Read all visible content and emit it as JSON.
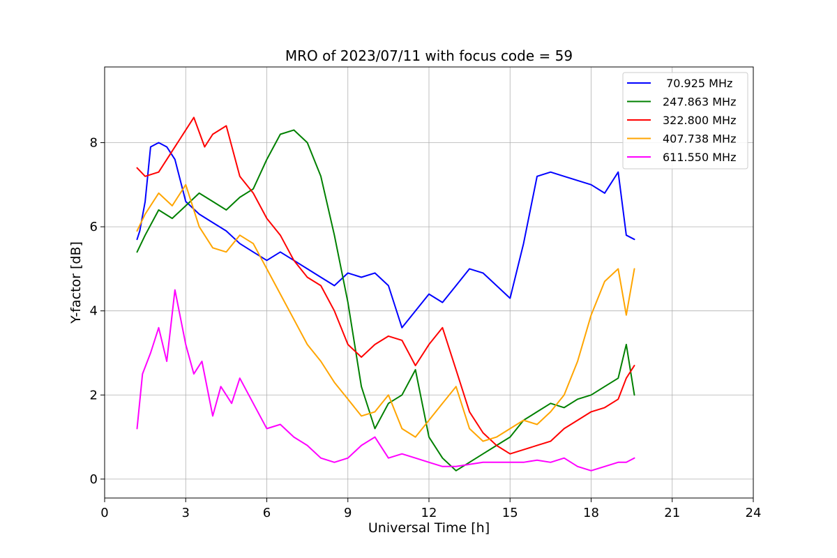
{
  "chart_data": {
    "type": "line",
    "title": "MRO of 2023/07/11 with focus code = 59",
    "xlabel": "Universal Time [h]",
    "ylabel": "Y-factor [dB]",
    "xlim": [
      0,
      24
    ],
    "ylim": [
      -0.45,
      9.8
    ],
    "xticks": [
      0,
      3,
      6,
      9,
      12,
      15,
      18,
      21,
      24
    ],
    "yticks": [
      0,
      2,
      4,
      6,
      8
    ],
    "grid": true,
    "legend_position": "top-right",
    "series": [
      {
        "name": " 70.925 MHz",
        "color": "#0000ff",
        "x": [
          1.2,
          1.3,
          1.5,
          1.7,
          2.0,
          2.3,
          2.6,
          3.0,
          3.5,
          4.0,
          4.5,
          5.0,
          5.5,
          6.0,
          6.5,
          7.0,
          7.5,
          8.0,
          8.5,
          9.0,
          9.5,
          10.0,
          10.5,
          11.0,
          11.5,
          12.0,
          12.5,
          13.0,
          13.5,
          14.0,
          14.5,
          15.0,
          15.5,
          16.0,
          16.5,
          17.0,
          17.5,
          18.0,
          18.5,
          19.0,
          19.3,
          19.6
        ],
        "y": [
          5.7,
          5.9,
          6.6,
          7.9,
          8.0,
          7.9,
          7.6,
          6.6,
          6.3,
          6.1,
          5.9,
          5.6,
          5.4,
          5.2,
          5.4,
          5.2,
          5.0,
          4.8,
          4.6,
          4.9,
          4.8,
          4.9,
          4.6,
          3.6,
          4.0,
          4.4,
          4.2,
          4.6,
          5.0,
          4.9,
          4.6,
          4.3,
          5.6,
          7.2,
          7.3,
          7.2,
          7.1,
          7.0,
          6.8,
          7.3,
          5.8,
          5.7
        ]
      },
      {
        "name": "247.863 MHz",
        "color": "#008000",
        "x": [
          1.2,
          1.5,
          2.0,
          2.5,
          3.0,
          3.5,
          4.0,
          4.5,
          5.0,
          5.5,
          6.0,
          6.5,
          7.0,
          7.5,
          8.0,
          8.5,
          9.0,
          9.5,
          10.0,
          10.5,
          11.0,
          11.5,
          12.0,
          12.5,
          13.0,
          13.5,
          14.0,
          14.5,
          15.0,
          15.5,
          16.0,
          16.5,
          17.0,
          17.5,
          18.0,
          18.5,
          19.0,
          19.3,
          19.6
        ],
        "y": [
          5.4,
          5.8,
          6.4,
          6.2,
          6.5,
          6.8,
          6.6,
          6.4,
          6.7,
          6.9,
          7.6,
          8.2,
          8.3,
          8.0,
          7.2,
          5.8,
          4.2,
          2.2,
          1.2,
          1.8,
          2.0,
          2.6,
          1.0,
          0.5,
          0.2,
          0.4,
          0.6,
          0.8,
          1.0,
          1.4,
          1.6,
          1.8,
          1.7,
          1.9,
          2.0,
          2.2,
          2.4,
          3.2,
          2.0
        ]
      },
      {
        "name": "322.800 MHz",
        "color": "#ff0000",
        "x": [
          1.2,
          1.5,
          2.0,
          2.5,
          3.0,
          3.3,
          3.7,
          4.0,
          4.5,
          5.0,
          5.5,
          6.0,
          6.5,
          7.0,
          7.5,
          8.0,
          8.5,
          9.0,
          9.5,
          10.0,
          10.5,
          11.0,
          11.5,
          12.0,
          12.5,
          13.0,
          13.5,
          14.0,
          14.5,
          15.0,
          15.5,
          16.0,
          16.5,
          17.0,
          17.5,
          18.0,
          18.5,
          19.0,
          19.3,
          19.6
        ],
        "y": [
          7.4,
          7.2,
          7.3,
          7.8,
          8.3,
          8.6,
          7.9,
          8.2,
          8.4,
          7.2,
          6.8,
          6.2,
          5.8,
          5.2,
          4.8,
          4.6,
          4.0,
          3.2,
          2.9,
          3.2,
          3.4,
          3.3,
          2.7,
          3.2,
          3.6,
          2.6,
          1.6,
          1.1,
          0.8,
          0.6,
          0.7,
          0.8,
          0.9,
          1.2,
          1.4,
          1.6,
          1.7,
          1.9,
          2.4,
          2.7
        ]
      },
      {
        "name": "407.738 MHz",
        "color": "#ffa500",
        "x": [
          1.2,
          1.5,
          2.0,
          2.5,
          3.0,
          3.5,
          4.0,
          4.5,
          5.0,
          5.5,
          6.0,
          6.5,
          7.0,
          7.5,
          8.0,
          8.5,
          9.0,
          9.5,
          10.0,
          10.5,
          11.0,
          11.5,
          12.0,
          12.5,
          13.0,
          13.5,
          14.0,
          14.5,
          15.0,
          15.5,
          16.0,
          16.5,
          17.0,
          17.5,
          18.0,
          18.5,
          19.0,
          19.3,
          19.6
        ],
        "y": [
          5.9,
          6.3,
          6.8,
          6.5,
          7.0,
          6.0,
          5.5,
          5.4,
          5.8,
          5.6,
          5.0,
          4.4,
          3.8,
          3.2,
          2.8,
          2.3,
          1.9,
          1.5,
          1.6,
          2.0,
          1.2,
          1.0,
          1.4,
          1.8,
          2.2,
          1.2,
          0.9,
          1.0,
          1.2,
          1.4,
          1.3,
          1.6,
          2.0,
          2.8,
          3.9,
          4.7,
          5.0,
          3.9,
          5.0
        ]
      },
      {
        "name": "611.550 MHz",
        "color": "#ff00ff",
        "x": [
          1.2,
          1.4,
          1.7,
          2.0,
          2.3,
          2.6,
          3.0,
          3.3,
          3.6,
          4.0,
          4.3,
          4.7,
          5.0,
          5.5,
          6.0,
          6.5,
          7.0,
          7.5,
          8.0,
          8.5,
          9.0,
          9.5,
          10.0,
          10.5,
          11.0,
          11.5,
          12.0,
          12.5,
          13.0,
          13.5,
          14.0,
          14.5,
          15.0,
          15.5,
          16.0,
          16.5,
          17.0,
          17.5,
          18.0,
          18.5,
          19.0,
          19.3,
          19.6
        ],
        "y": [
          1.2,
          2.5,
          3.0,
          3.6,
          2.8,
          4.5,
          3.2,
          2.5,
          2.8,
          1.5,
          2.2,
          1.8,
          2.4,
          1.8,
          1.2,
          1.3,
          1.0,
          0.8,
          0.5,
          0.4,
          0.5,
          0.8,
          1.0,
          0.5,
          0.6,
          0.5,
          0.4,
          0.3,
          0.3,
          0.35,
          0.4,
          0.4,
          0.4,
          0.4,
          0.45,
          0.4,
          0.5,
          0.3,
          0.2,
          0.3,
          0.4,
          0.4,
          0.5
        ]
      }
    ]
  }
}
